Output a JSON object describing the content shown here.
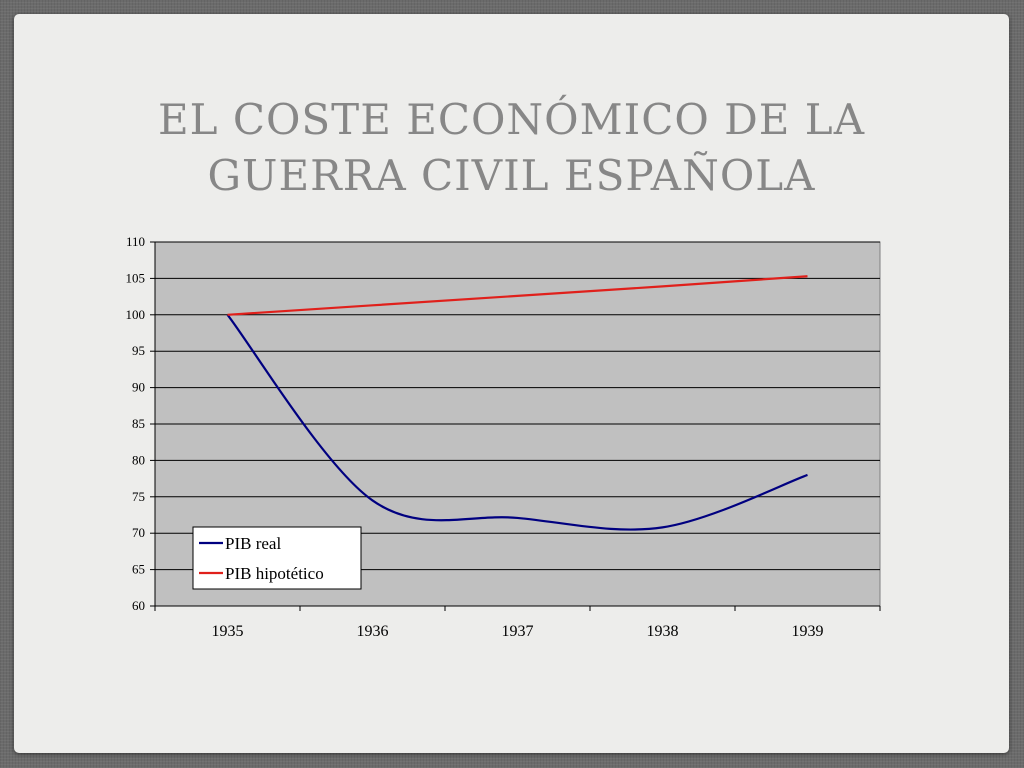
{
  "slide": {
    "title_line1": "EL COSTE ECONÓMICO DE LA",
    "title_line2": "GUERRA CIVIL ESPAÑOLA"
  },
  "chart_data": {
    "type": "line",
    "x": [
      "1935",
      "1936",
      "1937",
      "1938",
      "1939"
    ],
    "ylim": [
      60,
      110
    ],
    "yticks": [
      60,
      65,
      70,
      75,
      80,
      85,
      90,
      95,
      100,
      105,
      110
    ],
    "grid": true,
    "legend_position": "bottom-left",
    "plot_background": "#c0c0c0",
    "series": [
      {
        "name": "PIB real",
        "color": "#000080",
        "values": [
          100,
          74.5,
          72.1,
          70.8,
          78
        ],
        "smooth": true
      },
      {
        "name": "PIB hipotético",
        "color": "#e0201b",
        "values": [
          100,
          101.3,
          102.6,
          103.9,
          105.3
        ],
        "smooth": false
      }
    ]
  }
}
